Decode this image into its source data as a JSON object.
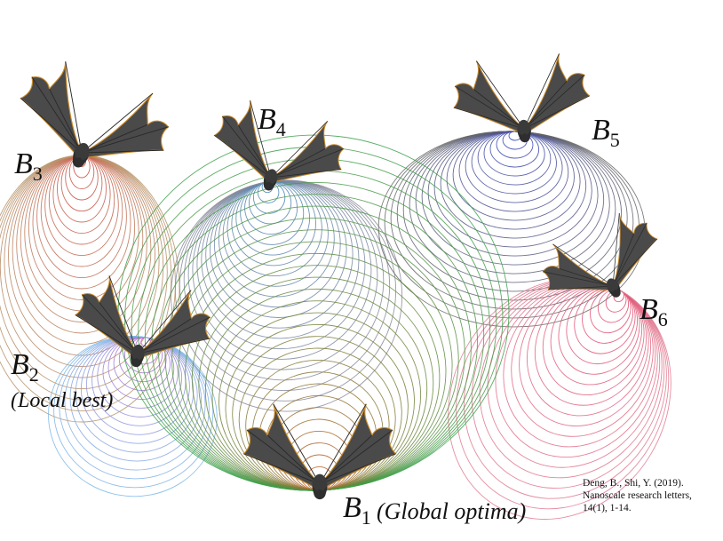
{
  "bats": [
    {
      "id": "b3",
      "label": "B",
      "sub": "3",
      "note": "",
      "color": "#d33b3b"
    },
    {
      "id": "b4",
      "label": "B",
      "sub": "4",
      "note": "",
      "color": "#2a7fc0"
    },
    {
      "id": "b5",
      "label": "B",
      "sub": "5",
      "note": "",
      "color": "#2233cc"
    },
    {
      "id": "b6",
      "label": "B",
      "sub": "6",
      "note": "",
      "color": "#e0305a"
    },
    {
      "id": "b2",
      "label": "B",
      "sub": "2",
      "note": "(Local best)",
      "color": "#c43cc4"
    },
    {
      "id": "b1",
      "label": "B",
      "sub": "1",
      "note": "(Global optima)",
      "color": "#e04a1a"
    }
  ],
  "palette": {
    "b3_fade": "#b99a70",
    "b4_fade": "#8a8a9a",
    "b1_fade": "#3aa04a",
    "b2_fade": "#7ab8e8",
    "b6_fade": "#e07a90",
    "b5_fade": "#666666",
    "bat_body": "#3a3a3a",
    "bat_wing": "#4a4a4a",
    "bat_edge": "#c98a2a"
  },
  "citation": {
    "line1": "Deng, B., Shi, Y. (2019).",
    "line2": "Nanoscale research letters,",
    "line3": "14(1), 1-14."
  }
}
